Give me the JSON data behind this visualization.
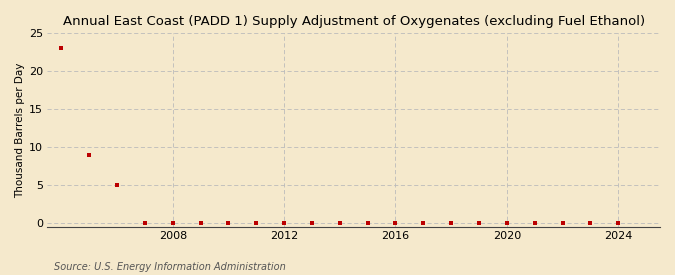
{
  "title": "Annual East Coast (PADD 1) Supply Adjustment of Oxygenates (excluding Fuel Ethanol)",
  "ylabel": "Thousand Barrels per Day",
  "source": "Source: U.S. Energy Information Administration",
  "background_color": "#f5e9cc",
  "marker_color": "#bb0000",
  "years": [
    2004,
    2005,
    2006,
    2007,
    2008,
    2009,
    2010,
    2011,
    2012,
    2013,
    2014,
    2015,
    2016,
    2017,
    2018,
    2019,
    2020,
    2021,
    2022,
    2023,
    2024
  ],
  "values": [
    23.0,
    9.0,
    5.0,
    0.0,
    0.0,
    0.0,
    0.0,
    0.0,
    0.0,
    0.0,
    0.0,
    0.0,
    0.0,
    0.0,
    0.0,
    0.0,
    0.0,
    0.0,
    0.0,
    0.0,
    0.0
  ],
  "xlim": [
    2003.5,
    2025.5
  ],
  "ylim": [
    -0.5,
    25
  ],
  "yticks": [
    0,
    5,
    10,
    15,
    20,
    25
  ],
  "xticks": [
    2008,
    2012,
    2016,
    2020,
    2024
  ],
  "grid_color": "#bbbbbb",
  "title_fontsize": 9.5,
  "label_fontsize": 7.5,
  "tick_fontsize": 8,
  "source_fontsize": 7
}
